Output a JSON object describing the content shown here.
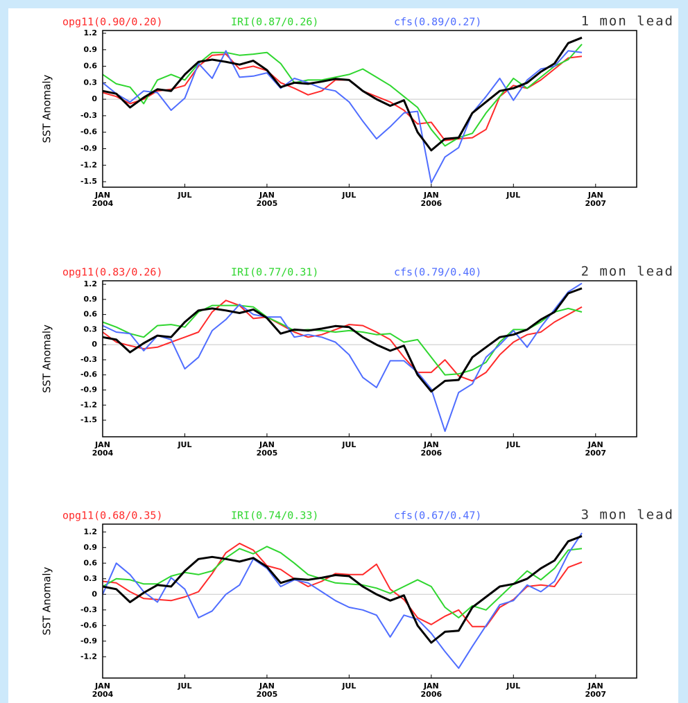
{
  "chart_data": [
    {
      "type": "line",
      "title": "1 mon lead",
      "ylabel": "SST Anomaly",
      "x": [
        "2004-01",
        "2004-02",
        "2004-03",
        "2004-04",
        "2004-05",
        "2004-06",
        "2004-07",
        "2004-08",
        "2004-09",
        "2004-10",
        "2004-11",
        "2004-12",
        "2005-01",
        "2005-02",
        "2005-03",
        "2005-04",
        "2005-05",
        "2005-06",
        "2005-07",
        "2005-08",
        "2005-09",
        "2005-10",
        "2005-11",
        "2005-12",
        "2006-01",
        "2006-02",
        "2006-03",
        "2006-04",
        "2006-05",
        "2006-06",
        "2006-07",
        "2006-08",
        "2006-09",
        "2006-10",
        "2006-11",
        "2006-12"
      ],
      "xlim": [
        "2004-01",
        "2007-04"
      ],
      "xticks": [
        {
          "value": "2004-01",
          "label": "JAN",
          "sublabel": "2004"
        },
        {
          "value": "2004-07",
          "label": "JUL"
        },
        {
          "value": "2005-01",
          "label": "JAN",
          "sublabel": "2005"
        },
        {
          "value": "2005-07",
          "label": "JUL"
        },
        {
          "value": "2006-01",
          "label": "JAN",
          "sublabel": "2006"
        },
        {
          "value": "2006-07",
          "label": "JUL"
        },
        {
          "value": "2007-01",
          "label": "JAN",
          "sublabel": "2007"
        }
      ],
      "ylim": [
        -1.6,
        1.25
      ],
      "yticks": [
        1.2,
        0.9,
        0.6,
        0.3,
        0,
        -0.3,
        -0.6,
        -0.9,
        -1.2,
        -1.5
      ],
      "zero_line": true,
      "series": [
        {
          "name": "opg11(0.90/0.20)",
          "color": "#ff2a2a",
          "values": [
            0.12,
            0.05,
            -0.08,
            0,
            0.15,
            0.18,
            0.25,
            0.6,
            0.8,
            0.82,
            0.55,
            0.6,
            0.52,
            0.3,
            0.2,
            0.08,
            0.15,
            0.35,
            0.35,
            0.15,
            0.05,
            -0.05,
            -0.2,
            -0.45,
            -0.42,
            -0.75,
            -0.72,
            -0.7,
            -0.55,
            0.05,
            0.25,
            0.2,
            0.35,
            0.55,
            0.75,
            0.78
          ]
        },
        {
          "name": "IRI(0.87/0.26)",
          "color": "#2fd62f",
          "values": [
            0.45,
            0.28,
            0.22,
            -0.08,
            0.35,
            0.45,
            0.35,
            0.65,
            0.85,
            0.85,
            0.8,
            0.82,
            0.85,
            0.65,
            0.3,
            0.35,
            0.35,
            0.4,
            0.45,
            0.55,
            0.4,
            0.25,
            0.05,
            -0.15,
            -0.55,
            -0.85,
            -0.7,
            -0.62,
            -0.25,
            0.05,
            0.38,
            0.2,
            0.4,
            0.6,
            0.72,
            1.0
          ]
        },
        {
          "name": "cfs(0.89/0.27)",
          "color": "#4f6dff",
          "values": [
            0.3,
            0.1,
            -0.05,
            0.15,
            0.12,
            -0.2,
            0.02,
            0.65,
            0.38,
            0.88,
            0.4,
            0.42,
            0.48,
            0.2,
            0.38,
            0.3,
            0.2,
            0.15,
            -0.05,
            -0.4,
            -0.72,
            -0.5,
            -0.25,
            -0.22,
            -1.52,
            -1.05,
            -0.88,
            -0.25,
            0.05,
            0.38,
            -0.02,
            0.35,
            0.55,
            0.6,
            0.88,
            0.85
          ]
        },
        {
          "color": "#000000",
          "values": [
            0.15,
            0.1,
            -0.15,
            0.03,
            0.18,
            0.15,
            0.45,
            0.68,
            0.72,
            0.68,
            0.63,
            0.7,
            0.53,
            0.22,
            0.3,
            0.28,
            0.32,
            0.37,
            0.35,
            0.15,
            0,
            -0.12,
            -0.02,
            -0.6,
            -0.93,
            -0.72,
            -0.7,
            -0.25,
            -0.05,
            0.15,
            0.2,
            0.3,
            0.5,
            0.65,
            1.02,
            1.12
          ]
        }
      ]
    },
    {
      "type": "line",
      "title": "2 mon lead",
      "ylabel": "SST Anomaly",
      "x": [
        "2004-01",
        "2004-02",
        "2004-03",
        "2004-04",
        "2004-05",
        "2004-06",
        "2004-07",
        "2004-08",
        "2004-09",
        "2004-10",
        "2004-11",
        "2004-12",
        "2005-01",
        "2005-02",
        "2005-03",
        "2005-04",
        "2005-05",
        "2005-06",
        "2005-07",
        "2005-08",
        "2005-09",
        "2005-10",
        "2005-11",
        "2005-12",
        "2006-01",
        "2006-02",
        "2006-03",
        "2006-04",
        "2006-05",
        "2006-06",
        "2006-07",
        "2006-08",
        "2006-09",
        "2006-10",
        "2006-11",
        "2006-12"
      ],
      "xlim": [
        "2004-01",
        "2007-04"
      ],
      "xticks": [
        {
          "value": "2004-01",
          "label": "JAN",
          "sublabel": "2004"
        },
        {
          "value": "2004-07",
          "label": "JUL"
        },
        {
          "value": "2005-01",
          "label": "JAN",
          "sublabel": "2005"
        },
        {
          "value": "2005-07",
          "label": "JUL"
        },
        {
          "value": "2006-01",
          "label": "JAN",
          "sublabel": "2006"
        },
        {
          "value": "2006-07",
          "label": "JUL"
        },
        {
          "value": "2007-01",
          "label": "JAN",
          "sublabel": "2007"
        }
      ],
      "ylim": [
        -1.83,
        1.27
      ],
      "yticks": [
        1.2,
        0.9,
        0.6,
        0.3,
        0,
        -0.3,
        -0.6,
        -0.9,
        -1.2,
        -1.5
      ],
      "zero_line": true,
      "series": [
        {
          "name": "opg11(0.83/0.26)",
          "color": "#ff2a2a",
          "values": [
            0.25,
            0.05,
            -0.02,
            -0.08,
            -0.05,
            0.05,
            0.15,
            0.25,
            0.65,
            0.88,
            0.78,
            0.52,
            0.55,
            0.4,
            0.25,
            0.15,
            0.2,
            0.3,
            0.4,
            0.38,
            0.25,
            0.1,
            -0.25,
            -0.55,
            -0.55,
            -0.3,
            -0.62,
            -0.72,
            -0.55,
            -0.2,
            0.05,
            0.2,
            0.25,
            0.45,
            0.6,
            0.75
          ]
        },
        {
          "name": "IRI(0.77/0.31)",
          "color": "#2fd62f",
          "values": [
            0.45,
            0.35,
            0.22,
            0.15,
            0.38,
            0.4,
            0.35,
            0.65,
            0.78,
            0.78,
            0.78,
            0.75,
            0.55,
            0.42,
            0.28,
            0.3,
            0.28,
            0.25,
            0.28,
            0.25,
            0.2,
            0.22,
            0.05,
            0.1,
            -0.25,
            -0.6,
            -0.58,
            -0.5,
            -0.35,
            0.05,
            0.3,
            0.3,
            0.45,
            0.65,
            0.72,
            0.65
          ]
        },
        {
          "name": "cfs(0.79/0.40)",
          "color": "#4f6dff",
          "values": [
            0.38,
            0.25,
            0.22,
            -0.12,
            0.18,
            0.1,
            -0.48,
            -0.25,
            0.28,
            0.5,
            0.8,
            0.6,
            0.55,
            0.55,
            0.15,
            0.2,
            0.15,
            0.05,
            -0.2,
            -0.65,
            -0.85,
            -0.32,
            -0.32,
            -0.55,
            -0.88,
            -1.72,
            -0.95,
            -0.78,
            -0.25,
            0,
            0.28,
            -0.05,
            0.35,
            0.7,
            1.05,
            1.22
          ]
        },
        {
          "color": "#000000",
          "values": [
            0.15,
            0.1,
            -0.15,
            0.03,
            0.18,
            0.15,
            0.45,
            0.68,
            0.72,
            0.68,
            0.63,
            0.7,
            0.53,
            0.22,
            0.3,
            0.28,
            0.32,
            0.37,
            0.35,
            0.15,
            0,
            -0.12,
            -0.02,
            -0.6,
            -0.93,
            -0.72,
            -0.7,
            -0.25,
            -0.05,
            0.15,
            0.2,
            0.3,
            0.5,
            0.65,
            1.02,
            1.12
          ]
        }
      ]
    },
    {
      "type": "line",
      "title": "3 mon lead",
      "ylabel": "SST Anomaly",
      "x": [
        "2004-01",
        "2004-02",
        "2004-03",
        "2004-04",
        "2004-05",
        "2004-06",
        "2004-07",
        "2004-08",
        "2004-09",
        "2004-10",
        "2004-11",
        "2004-12",
        "2005-01",
        "2005-02",
        "2005-03",
        "2005-04",
        "2005-05",
        "2005-06",
        "2005-07",
        "2005-08",
        "2005-09",
        "2005-10",
        "2005-11",
        "2005-12",
        "2006-01",
        "2006-02",
        "2006-03",
        "2006-04",
        "2006-05",
        "2006-06",
        "2006-07",
        "2006-08",
        "2006-09",
        "2006-10",
        "2006-11",
        "2006-12"
      ],
      "xlim": [
        "2004-01",
        "2007-04"
      ],
      "xticks": [
        {
          "value": "2004-01",
          "label": "JAN",
          "sublabel": "2004"
        },
        {
          "value": "2004-07",
          "label": "JUL"
        },
        {
          "value": "2005-01",
          "label": "JAN",
          "sublabel": "2005"
        },
        {
          "value": "2005-07",
          "label": "JUL"
        },
        {
          "value": "2006-01",
          "label": "JAN",
          "sublabel": "2006"
        },
        {
          "value": "2006-07",
          "label": "JUL"
        },
        {
          "value": "2007-01",
          "label": "JAN",
          "sublabel": "2007"
        }
      ],
      "ylim": [
        -1.61,
        1.35
      ],
      "yticks": [
        1.2,
        0.9,
        0.6,
        0.3,
        0,
        -0.3,
        -0.6,
        -0.9,
        -1.2
      ],
      "zero_line": true,
      "series": [
        {
          "name": "opg11(0.68/0.35)",
          "color": "#ff2a2a",
          "values": [
            0.25,
            0.22,
            0.05,
            -0.08,
            -0.1,
            -0.12,
            -0.05,
            0.05,
            0.4,
            0.8,
            0.98,
            0.85,
            0.55,
            0.48,
            0.3,
            0.15,
            0.25,
            0.4,
            0.38,
            0.38,
            0.58,
            0.1,
            -0.1,
            -0.45,
            -0.58,
            -0.42,
            -0.3,
            -0.62,
            -0.62,
            -0.25,
            -0.1,
            0.15,
            0.18,
            0.15,
            0.52,
            0.62
          ]
        },
        {
          "name": "IRI(0.74/0.33)",
          "color": "#2fd62f",
          "values": [
            0.15,
            0.3,
            0.28,
            0.2,
            0.2,
            0.35,
            0.42,
            0.38,
            0.45,
            0.7,
            0.88,
            0.78,
            0.92,
            0.8,
            0.6,
            0.38,
            0.3,
            0.22,
            0.2,
            0.18,
            0.12,
            0.02,
            0.15,
            0.28,
            0.15,
            -0.25,
            -0.45,
            -0.22,
            -0.3,
            -0.05,
            0.2,
            0.45,
            0.28,
            0.5,
            0.85,
            0.88
          ]
        },
        {
          "name": "cfs(0.67/0.47)",
          "color": "#4f6dff",
          "values": [
            0,
            0.6,
            0.38,
            0.05,
            -0.15,
            0.32,
            0.1,
            -0.45,
            -0.32,
            0,
            0.18,
            0.68,
            0.5,
            0.15,
            0.28,
            0.22,
            0.05,
            -0.12,
            -0.25,
            -0.3,
            -0.4,
            -0.82,
            -0.4,
            -0.48,
            -0.75,
            -1.1,
            -1.42,
            -1.0,
            -0.6,
            -0.2,
            -0.12,
            0.18,
            0.05,
            0.25,
            0.78,
            1.18
          ]
        },
        {
          "color": "#000000",
          "values": [
            0.15,
            0.1,
            -0.15,
            0.03,
            0.18,
            0.15,
            0.45,
            0.68,
            0.72,
            0.68,
            0.63,
            0.7,
            0.53,
            0.22,
            0.3,
            0.28,
            0.32,
            0.37,
            0.35,
            0.15,
            0,
            -0.12,
            -0.02,
            -0.6,
            -0.93,
            -0.72,
            -0.7,
            -0.25,
            -0.05,
            0.15,
            0.2,
            0.3,
            0.5,
            0.65,
            1.02,
            1.12
          ]
        }
      ]
    }
  ]
}
